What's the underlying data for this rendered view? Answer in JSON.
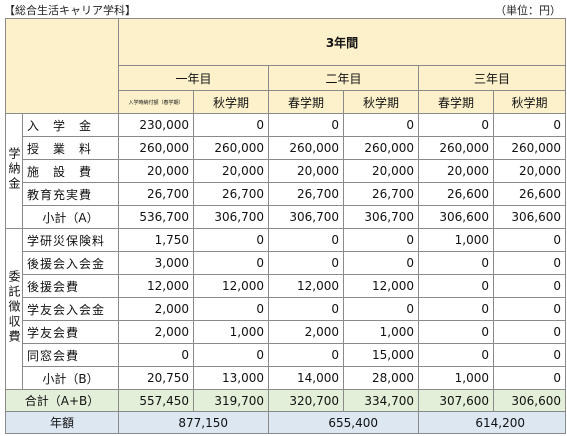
{
  "header": {
    "title": "【総合生活キャリア学科】",
    "unit": "（単位：円）"
  },
  "table": {
    "span_header": "3年間",
    "years": [
      "一年目",
      "二年目",
      "三年目"
    ],
    "terms": [
      "入学時納付額（春学期）",
      "秋学期",
      "春学期",
      "秋学期",
      "春学期",
      "秋学期"
    ],
    "groups": [
      {
        "label": "学納金",
        "rows": [
          {
            "label": "入　学　金",
            "values": [
              "230,000",
              "0",
              "0",
              "0",
              "0",
              "0"
            ]
          },
          {
            "label": "授　業　料",
            "values": [
              "260,000",
              "260,000",
              "260,000",
              "260,000",
              "260,000",
              "260,000"
            ]
          },
          {
            "label": "施　設　費",
            "values": [
              "20,000",
              "20,000",
              "20,000",
              "20,000",
              "20,000",
              "20,000"
            ]
          },
          {
            "label": "教育充実費",
            "values": [
              "26,700",
              "26,700",
              "26,700",
              "26,700",
              "26,600",
              "26,600"
            ]
          },
          {
            "label": "小計（A）",
            "values": [
              "536,700",
              "306,700",
              "306,700",
              "306,700",
              "306,600",
              "306,600"
            ]
          }
        ]
      },
      {
        "label": "委託徴収費",
        "rows": [
          {
            "label": "学研災保険料",
            "values": [
              "1,750",
              "0",
              "0",
              "0",
              "1,000",
              "0"
            ]
          },
          {
            "label": "後援会入会金",
            "values": [
              "3,000",
              "0",
              "0",
              "0",
              "0",
              "0"
            ]
          },
          {
            "label": "後援会費",
            "values": [
              "12,000",
              "12,000",
              "12,000",
              "12,000",
              "0",
              "0"
            ]
          },
          {
            "label": "学友会入会金",
            "values": [
              "2,000",
              "0",
              "0",
              "0",
              "0",
              "0"
            ]
          },
          {
            "label": "学友会費",
            "values": [
              "2,000",
              "1,000",
              "2,000",
              "1,000",
              "0",
              "0"
            ]
          },
          {
            "label": "同窓会費",
            "values": [
              "0",
              "0",
              "0",
              "15,000",
              "0",
              "0"
            ]
          },
          {
            "label": "小計（B）",
            "values": [
              "20,750",
              "13,000",
              "14,000",
              "28,000",
              "1,000",
              "0"
            ]
          }
        ]
      }
    ],
    "total": {
      "label": "合計（A+B）",
      "values": [
        "557,450",
        "319,700",
        "320,700",
        "334,700",
        "307,600",
        "306,600"
      ]
    },
    "annual": {
      "label": "年額",
      "values": [
        "877,150",
        "655,400",
        "614,200"
      ]
    }
  }
}
